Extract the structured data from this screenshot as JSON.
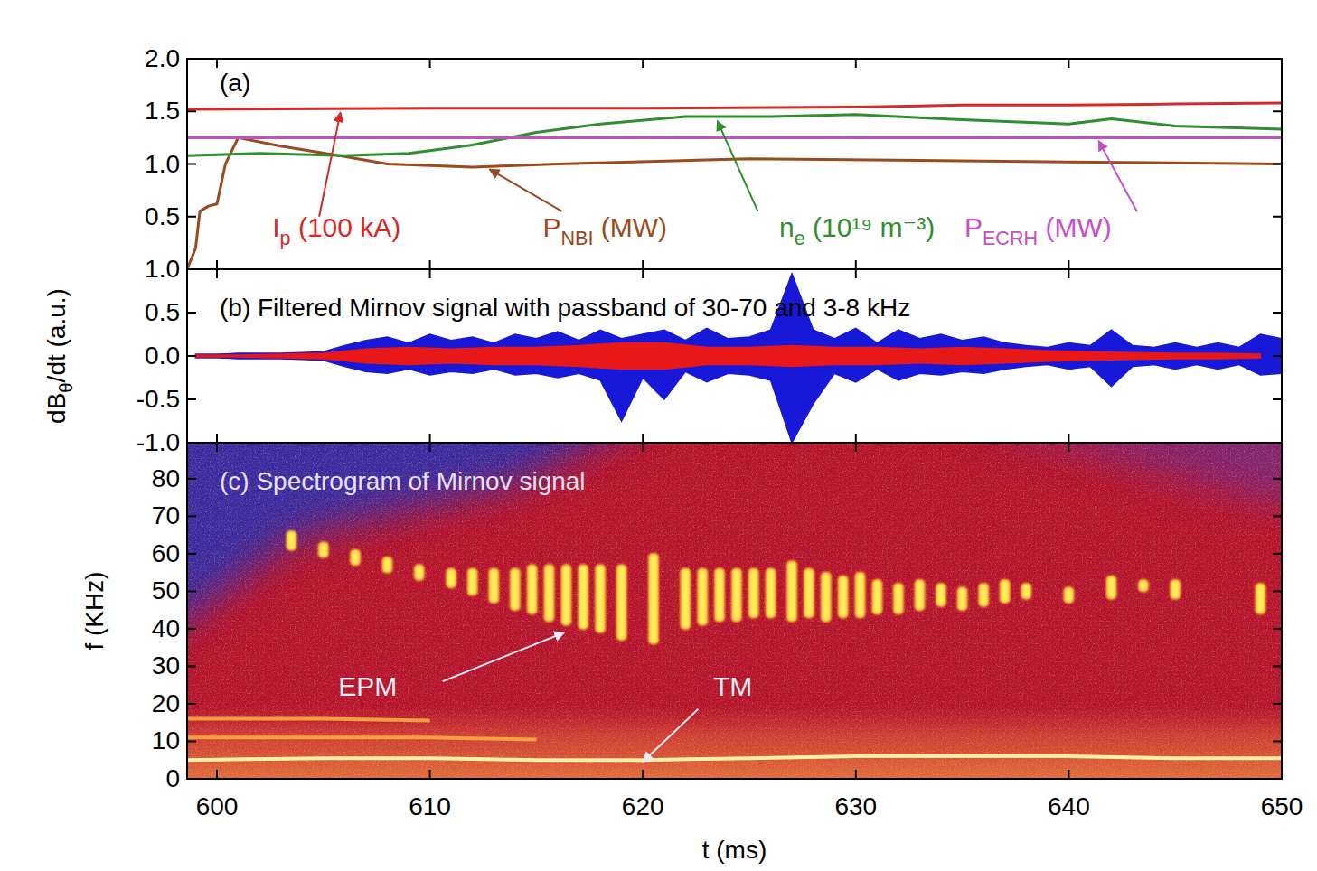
{
  "chart_data": [
    {
      "type": "line",
      "title": "(a)",
      "xlim": [
        598.6,
        650
      ],
      "xticks": [
        600,
        610,
        620,
        630,
        640,
        650
      ],
      "ylim": [
        0,
        2
      ],
      "yticks": [
        0.5,
        {
          "value": 1,
          "label": "1.0"
        },
        1.5,
        {
          "value": 2,
          "label": "2.0"
        }
      ],
      "tick_labels": "y",
      "series": [
        {
          "name": "Ip (100 kA)",
          "subscript": "p",
          "color": "#d42a2a",
          "x": [
            598.6,
            610,
            620,
            630,
            635,
            640,
            645,
            650
          ],
          "values": [
            1.52,
            1.53,
            1.53,
            1.54,
            1.56,
            1.56,
            1.57,
            1.58
          ],
          "label_x": 602.6,
          "label_y": 0.31,
          "arrow_from": [
            604.8,
            0.5
          ],
          "arrow_to": [
            605.8,
            1.49
          ]
        },
        {
          "name": "PNBI (MW)",
          "subscript": "NBI",
          "color": "#9a4a1c",
          "x": [
            598.6,
            599.0,
            599.2,
            599.6,
            600.0,
            600.4,
            601,
            603,
            606,
            608,
            612,
            616,
            625,
            640,
            650
          ],
          "values": [
            0,
            0.2,
            0.55,
            0.6,
            0.62,
            1.0,
            1.25,
            1.17,
            1.07,
            1.0,
            0.97,
            1.0,
            1.05,
            1.02,
            1.0
          ],
          "label_x": 615.3,
          "label_y": 0.31,
          "arrow_from": [
            616.2,
            0.55
          ],
          "arrow_to": [
            612.8,
            0.95
          ]
        },
        {
          "name": "ne (10¹⁹ m⁻³)",
          "subscript": "e",
          "color": "#2f8f2f",
          "x": [
            598.6,
            602,
            606,
            609,
            612,
            615,
            618,
            622,
            626,
            630,
            635,
            640,
            642,
            645,
            650
          ],
          "values": [
            1.08,
            1.1,
            1.08,
            1.1,
            1.18,
            1.3,
            1.38,
            1.45,
            1.45,
            1.47,
            1.42,
            1.38,
            1.43,
            1.36,
            1.33
          ],
          "label_x": 626.4,
          "label_y": 0.31,
          "arrow_from": [
            625.4,
            0.55
          ],
          "arrow_to": [
            623.5,
            1.41
          ]
        },
        {
          "name": "PECRH (MW)",
          "subscript": "ECRH",
          "color": "#c64fc6",
          "x": [
            598.6,
            650
          ],
          "values": [
            1.25,
            1.25
          ],
          "label_x": 635.1,
          "label_y": 0.31,
          "arrow_from": [
            643.2,
            0.55
          ],
          "arrow_to": [
            641.4,
            1.22
          ]
        }
      ]
    },
    {
      "type": "area",
      "title": "(b) Filtered Mirnov signal with passband of 30-70 and 3-8 kHz",
      "xlim": [
        598.6,
        650
      ],
      "xticks": [
        600,
        610,
        620,
        630,
        640,
        650
      ],
      "ylim": [
        -1,
        1
      ],
      "yticks": [
        {
          "value": -1,
          "label": "-1.0"
        },
        -0.5,
        {
          "value": 0,
          "label": "0.0"
        },
        0.5,
        {
          "value": 1,
          "label": "1.0"
        }
      ],
      "tick_labels": "y",
      "y_label": "dBθ/dt (a.u.)",
      "y_label_subscript": "θ",
      "series": [
        {
          "color": "#1818d8",
          "x": [
            599,
            600,
            601,
            602,
            603,
            604,
            605,
            606,
            607,
            608,
            609,
            610,
            611,
            612,
            613,
            614,
            615,
            616,
            617,
            618,
            619,
            620,
            621,
            622,
            623,
            624,
            625,
            626,
            627,
            628,
            629,
            630,
            631,
            632,
            633,
            634,
            635,
            636,
            637,
            638,
            639,
            640,
            641,
            642,
            643,
            644,
            645,
            646,
            647,
            648,
            649,
            650
          ],
          "values": [
            0.02,
            0.02,
            0.03,
            0.03,
            0.03,
            0.04,
            0.05,
            0.12,
            0.18,
            0.22,
            0.15,
            0.25,
            0.18,
            0.22,
            0.15,
            0.25,
            0.2,
            0.28,
            0.18,
            0.3,
            0.2,
            0.25,
            0.3,
            0.18,
            0.32,
            0.2,
            0.22,
            0.3,
            0.95,
            0.3,
            0.2,
            0.32,
            0.15,
            0.3,
            0.2,
            0.25,
            0.18,
            0.22,
            0.15,
            0.12,
            0.1,
            0.15,
            0.12,
            0.3,
            0.12,
            0.1,
            0.15,
            0.1,
            0.15,
            0.1,
            0.25,
            0.2
          ],
          "lower": [
            -0.02,
            -0.02,
            -0.03,
            -0.03,
            -0.03,
            -0.04,
            -0.05,
            -0.12,
            -0.18,
            -0.2,
            -0.15,
            -0.22,
            -0.18,
            -0.2,
            -0.15,
            -0.22,
            -0.2,
            -0.25,
            -0.2,
            -0.28,
            -0.75,
            -0.25,
            -0.5,
            -0.18,
            -0.3,
            -0.2,
            -0.22,
            -0.28,
            -1.0,
            -0.55,
            -0.2,
            -0.3,
            -0.15,
            -0.28,
            -0.2,
            -0.22,
            -0.18,
            -0.2,
            -0.15,
            -0.12,
            -0.1,
            -0.15,
            -0.12,
            -0.35,
            -0.12,
            -0.1,
            -0.15,
            -0.1,
            -0.15,
            -0.1,
            -0.22,
            -0.2
          ]
        },
        {
          "color": "#e81818",
          "x": [
            599,
            601,
            603,
            605,
            607,
            609,
            611,
            613,
            615,
            617,
            619,
            621,
            623,
            625,
            627,
            629,
            631,
            633,
            635,
            637,
            639,
            641,
            643,
            645,
            647,
            649
          ],
          "values": [
            0.01,
            0.01,
            0.02,
            0.03,
            0.08,
            0.1,
            0.08,
            0.1,
            0.1,
            0.12,
            0.15,
            0.15,
            0.1,
            0.1,
            0.12,
            0.1,
            0.1,
            0.08,
            0.1,
            0.08,
            0.06,
            0.05,
            0.04,
            0.03,
            0.03,
            0.02
          ],
          "lower": [
            -0.01,
            -0.01,
            -0.02,
            -0.03,
            -0.08,
            -0.1,
            -0.08,
            -0.1,
            -0.1,
            -0.12,
            -0.15,
            -0.15,
            -0.1,
            -0.1,
            -0.12,
            -0.1,
            -0.1,
            -0.08,
            -0.1,
            -0.08,
            -0.06,
            -0.05,
            -0.04,
            -0.03,
            -0.03,
            -0.02
          ]
        }
      ]
    },
    {
      "type": "spectrogram",
      "title": "(c) Spectrogram of Mirnov signal",
      "xlim": [
        598.6,
        650
      ],
      "xticks": [
        600,
        610,
        620,
        630,
        640,
        650
      ],
      "ylim": [
        0,
        89.6
      ],
      "yticks": [
        0,
        10,
        20,
        30,
        40,
        50,
        60,
        70,
        80
      ],
      "x_label": "t (ms)",
      "y_label": "f (KHz)",
      "series": [
        {
          "type": "bursts",
          "color": "#ffea5a",
          "x": [
            603.5,
            605,
            606.5,
            608,
            609.5,
            611,
            612,
            613,
            614,
            614.8,
            615.6,
            616.4,
            617.2,
            618,
            619,
            620.5,
            622,
            622.8,
            623.6,
            624.4,
            625.2,
            626,
            627,
            627.8,
            628.6,
            629.4,
            630.2,
            631,
            632,
            633,
            634,
            635,
            636,
            637,
            638,
            640,
            642,
            643.5,
            645,
            649
          ],
          "values": [
            66,
            63,
            61,
            59,
            57,
            56,
            56,
            56,
            56,
            57,
            57,
            57,
            57,
            57,
            57,
            60,
            56,
            56,
            56,
            56,
            56,
            56,
            58,
            56,
            55,
            54,
            55,
            53,
            52,
            53,
            52,
            51,
            52,
            53,
            52,
            51,
            54,
            53,
            53,
            52
          ],
          "lower": [
            61,
            59,
            57,
            55,
            53,
            51,
            49,
            47,
            45,
            44,
            42,
            41,
            40,
            39,
            37,
            36,
            40,
            41,
            42,
            42,
            43,
            43,
            42,
            43,
            42,
            43,
            43,
            44,
            44,
            45,
            46,
            45,
            46,
            47,
            48,
            47,
            48,
            50,
            48,
            44
          ]
        },
        {
          "type": "line",
          "color": "#fff2a8",
          "x": [
            598.6,
            605,
            610,
            615,
            620,
            625,
            630,
            635,
            640,
            645,
            650
          ],
          "values": [
            5,
            5.5,
            5.5,
            5,
            5,
            5.5,
            6,
            6,
            6,
            5.5,
            5.5
          ]
        },
        {
          "type": "line",
          "color": "#f2a040",
          "x": [
            598.6,
            605,
            610,
            615
          ],
          "values": [
            11,
            11,
            11,
            10.5
          ]
        },
        {
          "type": "line",
          "color": "#f2a040",
          "x": [
            598.6,
            605,
            610
          ],
          "values": [
            16,
            16,
            15.5
          ]
        }
      ],
      "annotations": [
        {
          "text": "EPM",
          "x": 605.7,
          "y": 22.2,
          "arrow_from": [
            610.6,
            26
          ],
          "arrow_to": [
            616.3,
            39
          ],
          "color": "#ececf4"
        },
        {
          "text": "TM",
          "x": 623.3,
          "y": 22.2,
          "arrow_from": [
            622.6,
            18.6
          ],
          "arrow_to": [
            620,
            4.6
          ],
          "color": "#ececf4"
        }
      ]
    }
  ]
}
